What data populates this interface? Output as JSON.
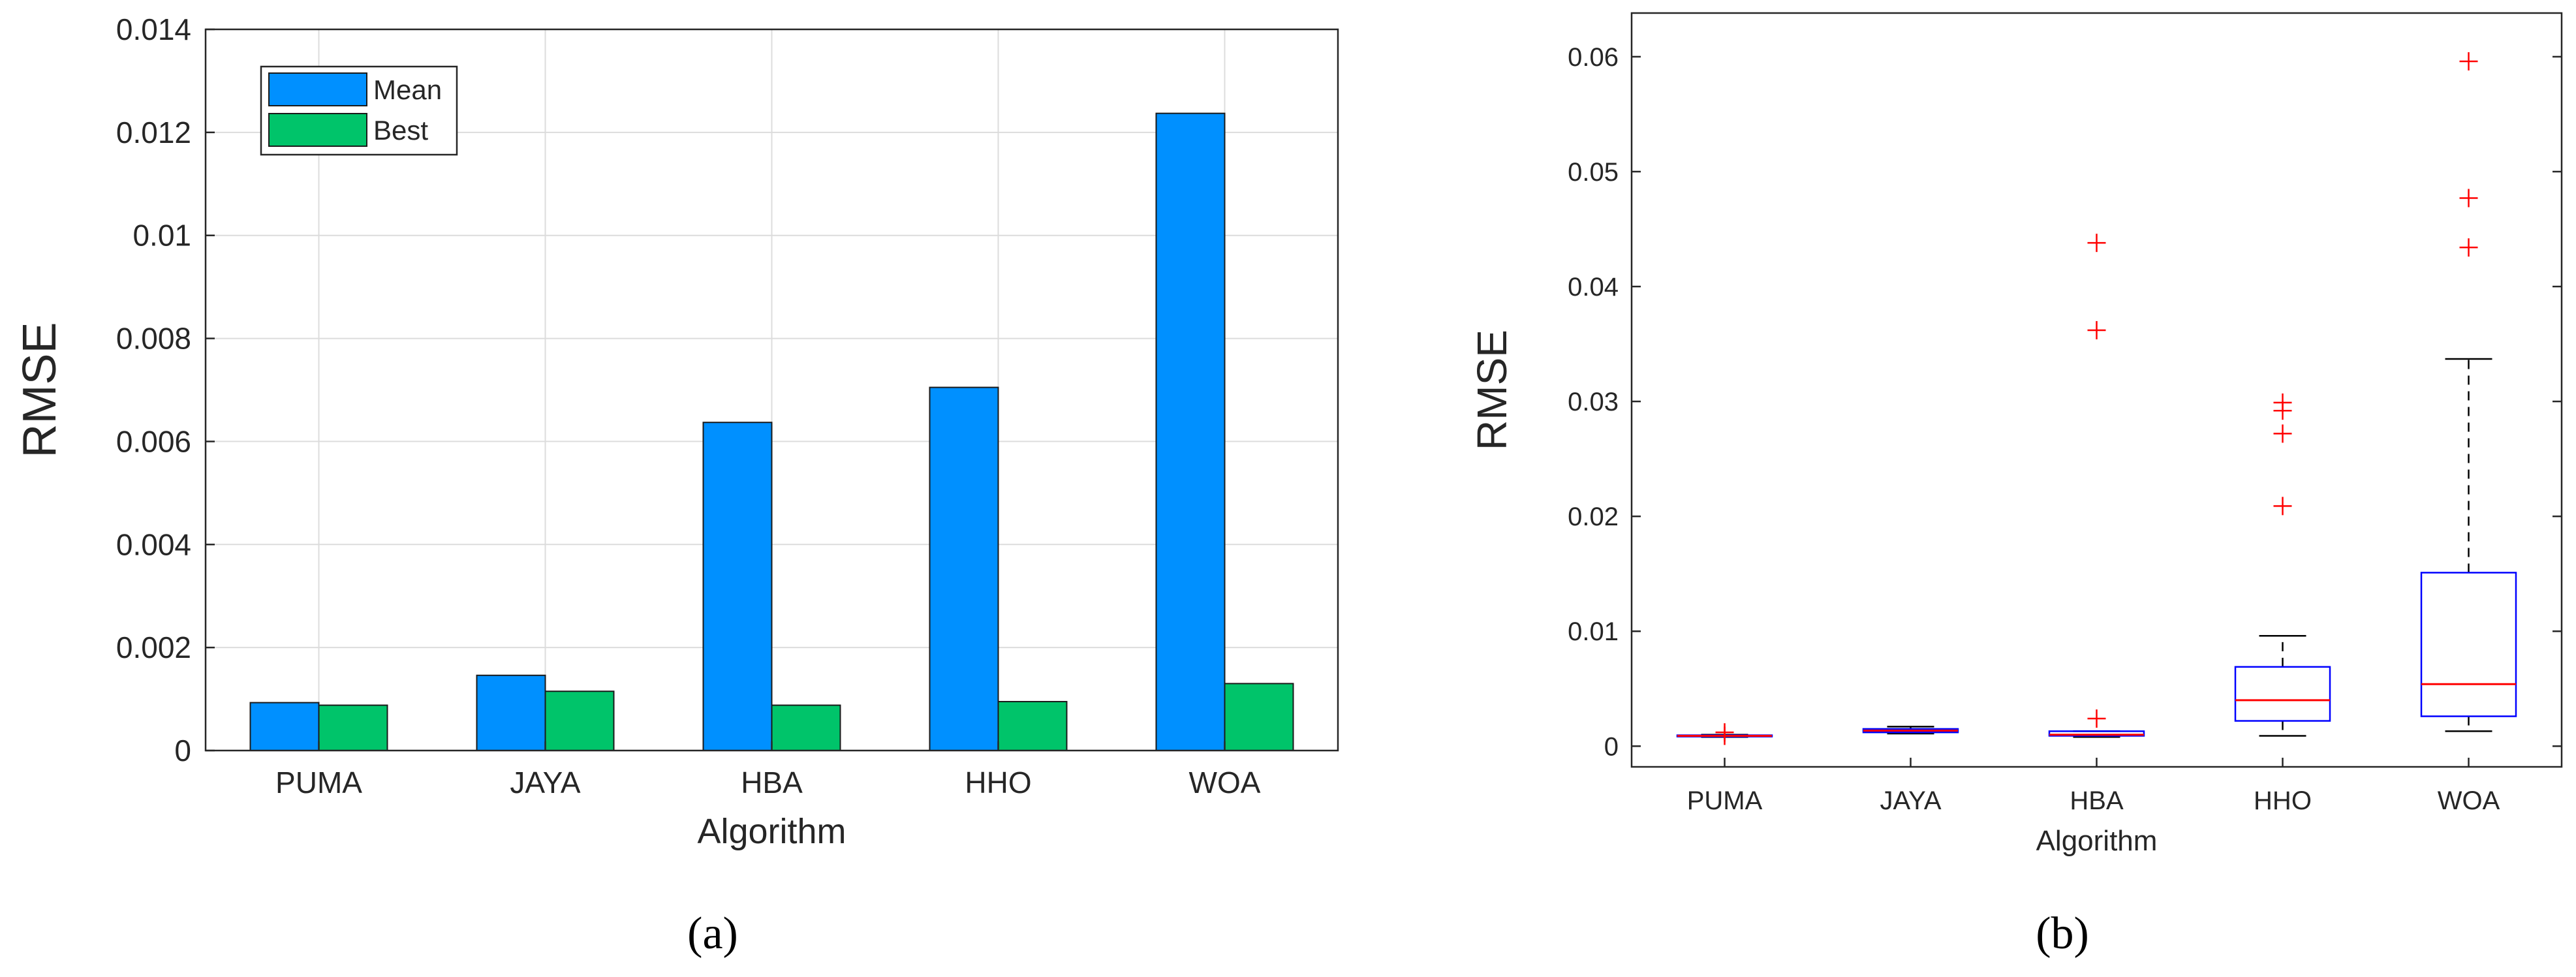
{
  "chart_data": [
    {
      "type": "bar",
      "panel_label": "(a)",
      "xlabel": "Algorithm",
      "ylabel": "RMSE",
      "categories": [
        "PUMA",
        "JAYA",
        "HBA",
        "HHO",
        "WOA"
      ],
      "ylim": [
        0,
        0.014
      ],
      "yticks": [
        "0",
        "0.002",
        "0.004",
        "0.006",
        "0.008",
        "0.01",
        "0.012",
        "0.014"
      ],
      "ytick_values": [
        0,
        0.002,
        0.004,
        0.006,
        0.008,
        0.01,
        0.012,
        0.014
      ],
      "grid": true,
      "legend_position": "top-left",
      "series": [
        {
          "name": "Mean",
          "color": "#0090ff",
          "values": [
            0.00093,
            0.00146,
            0.00637,
            0.00705,
            0.01237
          ]
        },
        {
          "name": "Best",
          "color": "#00c46a",
          "values": [
            0.00088,
            0.00115,
            0.00088,
            0.00095,
            0.0013
          ]
        }
      ]
    },
    {
      "type": "box",
      "panel_label": "(b)",
      "xlabel": "Algorithm",
      "ylabel": "RMSE",
      "categories": [
        "PUMA",
        "JAYA",
        "HBA",
        "HHO",
        "WOA"
      ],
      "ylim": [
        -0.0018,
        0.0638
      ],
      "yticks": [
        "0",
        "0.01",
        "0.02",
        "0.03",
        "0.04",
        "0.05",
        "0.06"
      ],
      "ytick_values": [
        0,
        0.01,
        0.02,
        0.03,
        0.04,
        0.05,
        0.06
      ],
      "grid": false,
      "box_color": "#0000ff",
      "median_color": "#ff0000",
      "outlier_color": "#ff0000",
      "boxes": [
        {
          "category": "PUMA",
          "whisker_low": 0.0008,
          "q1": 0.00085,
          "median": 0.0009,
          "q3": 0.00095,
          "whisker_high": 0.001,
          "outliers": [
            0.0012,
            0.0009
          ]
        },
        {
          "category": "JAYA",
          "whisker_low": 0.0011,
          "q1": 0.0012,
          "median": 0.00135,
          "q3": 0.0015,
          "whisker_high": 0.0017,
          "outliers": []
        },
        {
          "category": "HBA",
          "whisker_low": 0.0008,
          "q1": 0.0009,
          "median": 0.001,
          "q3": 0.0013,
          "whisker_high": 0.0013,
          "outliers": [
            0.0024,
            0.0362,
            0.0438
          ]
        },
        {
          "category": "HHO",
          "whisker_low": 0.0009,
          "q1": 0.0022,
          "median": 0.004,
          "q3": 0.0069,
          "whisker_high": 0.0096,
          "outliers": [
            0.0209,
            0.0272,
            0.0292,
            0.0299
          ]
        },
        {
          "category": "WOA",
          "whisker_low": 0.0013,
          "q1": 0.0026,
          "median": 0.0054,
          "q3": 0.0151,
          "whisker_high": 0.0337,
          "outliers": [
            0.0434,
            0.0477,
            0.0596
          ]
        }
      ]
    }
  ]
}
